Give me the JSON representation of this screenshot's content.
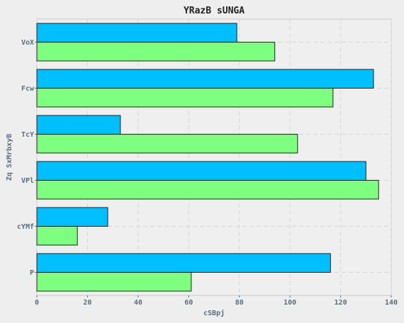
{
  "chart_data": {
    "type": "bar",
    "orientation": "horizontal",
    "title": "YRazB sUNGA",
    "xlabel": "cSBpj",
    "ylabel": "Zq SxMrbxyB",
    "categories": [
      "VoX",
      "Fcw",
      "TcY",
      "VPl",
      "cYMf",
      "P"
    ],
    "series": [
      {
        "values": [
          79,
          133,
          33,
          130,
          28,
          116
        ],
        "color": "#00bfff"
      },
      {
        "values": [
          94,
          117,
          103,
          135,
          16,
          61
        ],
        "color": "#7fff7f"
      }
    ],
    "xlim": [
      0,
      140
    ],
    "xticks": [
      "0",
      "20",
      "40",
      "60",
      "80",
      "100",
      "120",
      "140"
    ],
    "grid": true
  }
}
